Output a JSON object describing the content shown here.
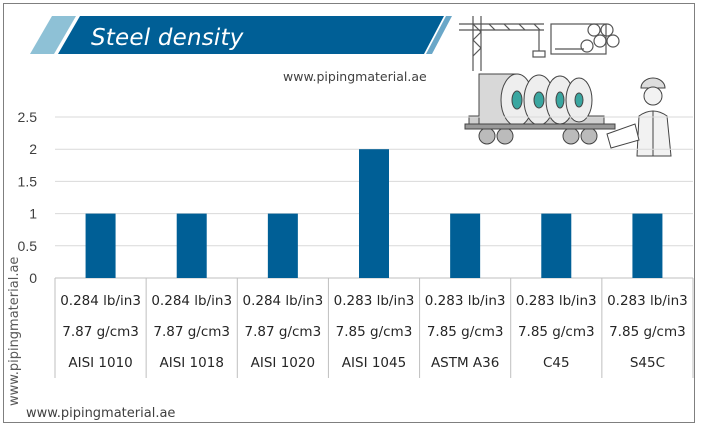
{
  "header": {
    "title": "Steel density",
    "site_url": "www.pipingmaterial.ae"
  },
  "watermarks": {
    "side_url": "www.pipingmaterial.ae",
    "bottom_url": "www.pipingmaterial.ae"
  },
  "colors": {
    "bar": "#005f96",
    "banner": "#005f96",
    "grid": "#d9d9d9",
    "table_line": "#bfbfbf",
    "frame": "#7f7f7f"
  },
  "illustration": {
    "icons": [
      "crane-icon",
      "pipes-icon",
      "truck-with-steel-coils-icon",
      "engineer-icon"
    ]
  },
  "chart_data": {
    "type": "bar",
    "title": "",
    "xlabel": "",
    "ylabel": "",
    "ylim": [
      0,
      2.5
    ],
    "yticks": [
      "0",
      "0.5",
      "1",
      "1.5",
      "2",
      "2.5"
    ],
    "ytick_values": [
      0,
      0.5,
      1,
      1.5,
      2,
      2.5
    ],
    "grid": true,
    "legend": "none",
    "categories": [
      "AISI 1010",
      "AISI 1018",
      "AISI 1020",
      "AISI 1045",
      "ASTM A36",
      "C45",
      "S45C"
    ],
    "category_rows": [
      [
        "0.284 lb/in3",
        "0.284 lb/in3",
        "0.284 lb/in3",
        "0.283 lb/in3",
        "0.283 lb/in3",
        "0.283 lb/in3",
        "0.283 lb/in3"
      ],
      [
        "7.87 g/cm3",
        "7.87 g/cm3",
        "7.87 g/cm3",
        "7.85 g/cm3",
        "7.85 g/cm3",
        "7.85 g/cm3",
        "7.85 g/cm3"
      ],
      [
        "AISI 1010",
        "AISI 1018",
        "AISI 1020",
        "AISI 1045",
        "ASTM A36",
        "C45",
        "S45C"
      ]
    ],
    "values": [
      1,
      1,
      1,
      2,
      1,
      1,
      1
    ]
  }
}
